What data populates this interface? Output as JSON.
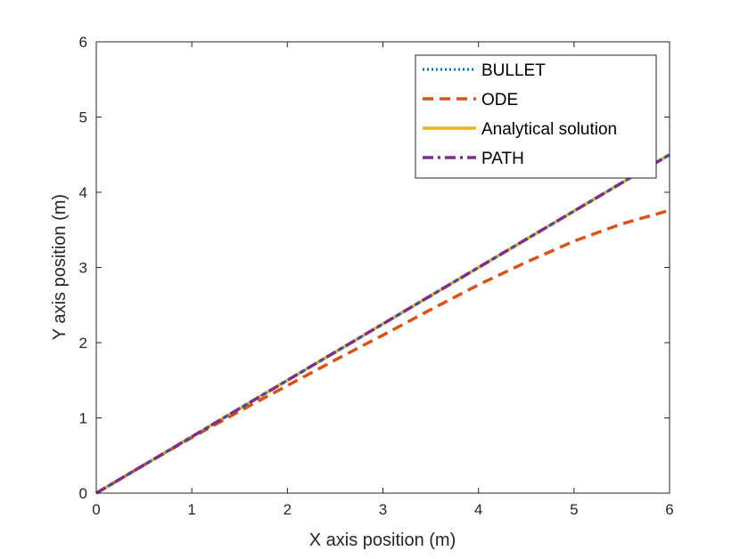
{
  "chart_data": {
    "type": "line",
    "title": "",
    "xlabel": "X axis position (m)",
    "ylabel": "Y axis position (m)",
    "xlim": [
      0,
      6
    ],
    "ylim": [
      0,
      6
    ],
    "grid": false,
    "legend_position": "top-right",
    "xticks": [
      0,
      1,
      2,
      3,
      4,
      5,
      6
    ],
    "yticks": [
      0,
      1,
      2,
      3,
      4,
      5,
      6
    ],
    "xtick_labels": [
      "0",
      "1",
      "2",
      "3",
      "4",
      "5",
      "6"
    ],
    "ytick_labels": [
      "0",
      "1",
      "2",
      "3",
      "4",
      "5",
      "6"
    ],
    "series": [
      {
        "name": "BULLET",
        "color": "#0072BD",
        "style": "dotted",
        "x": [
          0,
          1,
          2,
          3,
          4,
          5,
          6
        ],
        "y": [
          0,
          0.75,
          1.5,
          2.25,
          3.0,
          3.75,
          4.5
        ]
      },
      {
        "name": "ODE",
        "color": "#D95319",
        "style": "dashed",
        "x": [
          0,
          0.5,
          1,
          1.5,
          2,
          2.5,
          3,
          3.5,
          4,
          4.5,
          5,
          5.5,
          6
        ],
        "y": [
          0,
          0.375,
          0.74,
          1.09,
          1.43,
          1.77,
          2.1,
          2.44,
          2.77,
          3.07,
          3.35,
          3.58,
          3.76
        ]
      },
      {
        "name": "Analytical solution",
        "color": "#EDB120",
        "style": "solid",
        "x": [
          0,
          1,
          2,
          3,
          4,
          5,
          6
        ],
        "y": [
          0,
          0.75,
          1.5,
          2.25,
          3.0,
          3.75,
          4.5
        ]
      },
      {
        "name": "PATH",
        "color": "#7E2F8E",
        "style": "dashdot",
        "x": [
          0,
          1,
          2,
          3,
          4,
          5,
          6
        ],
        "y": [
          0,
          0.75,
          1.5,
          2.25,
          3.0,
          3.75,
          4.5
        ]
      }
    ]
  }
}
